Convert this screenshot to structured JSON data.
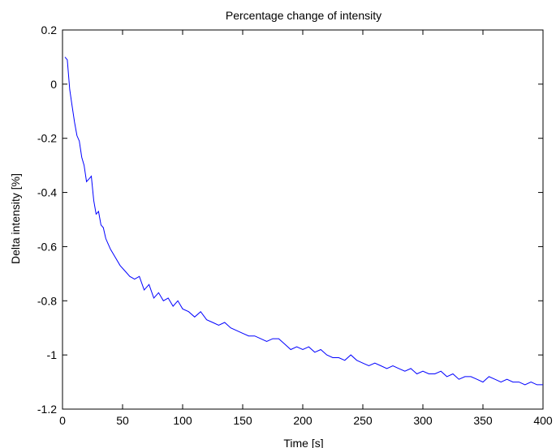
{
  "chart_data": {
    "type": "line",
    "title": "Percentage change of intensity",
    "xlabel": "Time [s]",
    "ylabel": "Delta intensity [%]",
    "xlim": [
      0,
      400
    ],
    "ylim": [
      -1.2,
      0.2
    ],
    "xticks": [
      0,
      50,
      100,
      150,
      200,
      250,
      300,
      350,
      400
    ],
    "xtick_labels": [
      "0",
      "50",
      "100",
      "150",
      "200",
      "250",
      "300",
      "350",
      "400"
    ],
    "yticks": [
      0.2,
      0,
      -0.2,
      -0.4,
      -0.6,
      -0.8,
      -1,
      -1.2
    ],
    "ytick_labels": [
      "0.2",
      "0",
      "-0.2",
      "-0.4",
      "-0.6",
      "-0.8",
      "-1",
      "-1.2"
    ],
    "grid": false,
    "line_color": "#0000ff",
    "series": [
      {
        "x": [
          2,
          4,
          6,
          8,
          10,
          12,
          14,
          16,
          18,
          20,
          22,
          24,
          26,
          28,
          30,
          32,
          34,
          36,
          38,
          40,
          44,
          48,
          52,
          56,
          60,
          64,
          68,
          72,
          76,
          80,
          84,
          88,
          92,
          96,
          100,
          105,
          110,
          115,
          120,
          125,
          130,
          135,
          140,
          145,
          150,
          155,
          160,
          165,
          170,
          175,
          180,
          185,
          190,
          195,
          200,
          205,
          210,
          215,
          220,
          225,
          230,
          235,
          240,
          245,
          250,
          255,
          260,
          265,
          270,
          275,
          280,
          285,
          290,
          295,
          300,
          305,
          310,
          315,
          320,
          325,
          330,
          335,
          340,
          345,
          350,
          355,
          360,
          365,
          370,
          375,
          380,
          385,
          390,
          395,
          400
        ],
        "values": [
          0.1,
          0.09,
          -0.02,
          -0.08,
          -0.14,
          -0.19,
          -0.21,
          -0.27,
          -0.3,
          -0.36,
          -0.35,
          -0.34,
          -0.43,
          -0.48,
          -0.47,
          -0.52,
          -0.53,
          -0.57,
          -0.59,
          -0.61,
          -0.64,
          -0.67,
          -0.69,
          -0.71,
          -0.72,
          -0.71,
          -0.76,
          -0.74,
          -0.79,
          -0.77,
          -0.8,
          -0.79,
          -0.82,
          -0.8,
          -0.83,
          -0.84,
          -0.86,
          -0.84,
          -0.87,
          -0.88,
          -0.89,
          -0.88,
          -0.9,
          -0.91,
          -0.92,
          -0.93,
          -0.93,
          -0.94,
          -0.95,
          -0.94,
          -0.94,
          -0.96,
          -0.98,
          -0.97,
          -0.98,
          -0.97,
          -0.99,
          -0.98,
          -1.0,
          -1.01,
          -1.01,
          -1.02,
          -1.0,
          -1.02,
          -1.03,
          -1.04,
          -1.03,
          -1.04,
          -1.05,
          -1.04,
          -1.05,
          -1.06,
          -1.05,
          -1.07,
          -1.06,
          -1.07,
          -1.07,
          -1.06,
          -1.08,
          -1.07,
          -1.09,
          -1.08,
          -1.08,
          -1.09,
          -1.1,
          -1.08,
          -1.09,
          -1.1,
          -1.09,
          -1.1,
          -1.1,
          -1.11,
          -1.1,
          -1.11,
          -1.11
        ]
      }
    ]
  }
}
